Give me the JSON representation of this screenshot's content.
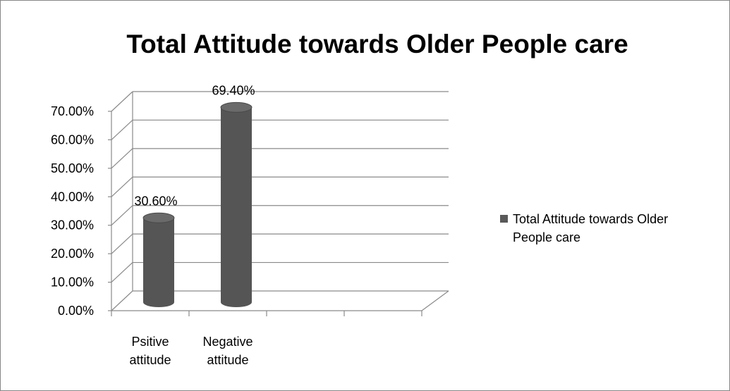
{
  "chart_data": {
    "type": "bar",
    "style": "3d-cylinder",
    "title": "Total Attitude towards Older People care",
    "categories": [
      [
        "Psitive",
        "attitude"
      ],
      [
        "Negative",
        "attitude"
      ],
      [
        "",
        ""
      ],
      [
        "",
        ""
      ]
    ],
    "series": [
      {
        "name": "Total Attitude towards Older People care",
        "values": [
          30.6,
          69.4,
          null,
          null
        ],
        "data_labels": [
          "30.60%",
          "69.40%",
          "",
          ""
        ]
      }
    ],
    "y_ticks": [
      "0.00%",
      "10.00%",
      "20.00%",
      "30.00%",
      "40.00%",
      "50.00%",
      "60.00%",
      "70.00%"
    ],
    "ylim": [
      0,
      70
    ],
    "grid": true,
    "legend_position": "right",
    "colors": {
      "bar": "#555555",
      "bar_top": "#6a6a6a",
      "grid": "#8a8a8a",
      "legend_marker": "#595959"
    }
  }
}
